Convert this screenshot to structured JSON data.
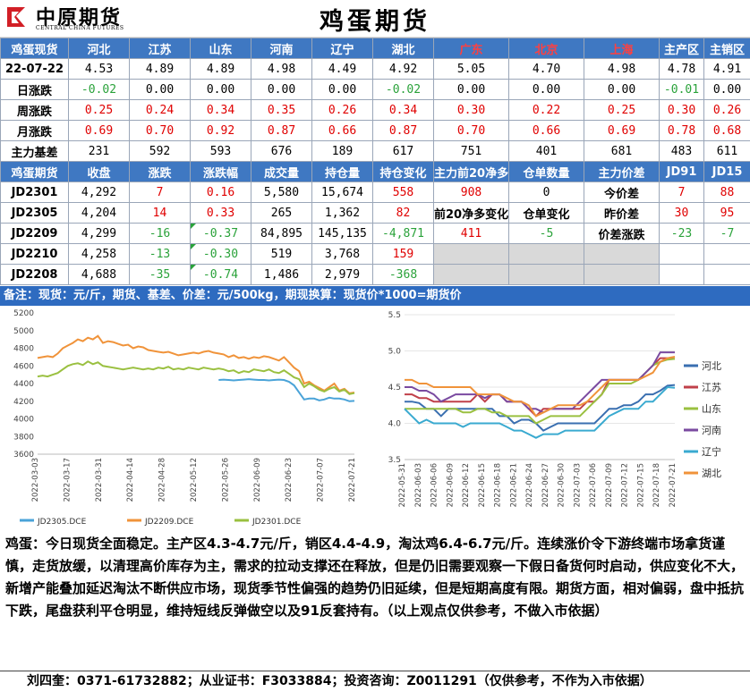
{
  "header": {
    "logo_cn": "中原期货",
    "logo_en": "CENTRAL CHINA FUTURES",
    "title": "鸡蛋期货"
  },
  "spot": {
    "headers": [
      "鸡蛋现货",
      "河北",
      "江苏",
      "山东",
      "河南",
      "辽宁",
      "湖北",
      "广东",
      "北京",
      "上海",
      "主产区",
      "主销区"
    ],
    "red_headers": [
      7,
      8,
      9
    ],
    "rows": [
      {
        "label": "22-07-22",
        "values": [
          "4.53",
          "4.89",
          "4.89",
          "4.98",
          "4.49",
          "4.92",
          "5.05",
          "4.70",
          "4.98",
          "4.78",
          "4.91"
        ],
        "colors": [
          "",
          "",
          "",
          "",
          "",
          "",
          "",
          "",
          "",
          "",
          ""
        ]
      },
      {
        "label": "日涨跌",
        "values": [
          "-0.02",
          "0.00",
          "0.00",
          "0.00",
          "0.00",
          "-0.02",
          "0.00",
          "0.00",
          "0.00",
          "-0.01",
          "0.00"
        ],
        "colors": [
          "green",
          "",
          "",
          "",
          "",
          "green",
          "",
          "",
          "",
          "green",
          ""
        ]
      },
      {
        "label": "周涨跌",
        "values": [
          "0.25",
          "0.24",
          "0.34",
          "0.35",
          "0.26",
          "0.34",
          "0.30",
          "0.22",
          "0.25",
          "0.30",
          "0.26"
        ],
        "colors": [
          "red",
          "red",
          "red",
          "red",
          "red",
          "red",
          "red",
          "red",
          "red",
          "red",
          "red"
        ]
      },
      {
        "label": "月涨跌",
        "values": [
          "0.69",
          "0.70",
          "0.92",
          "0.87",
          "0.66",
          "0.87",
          "0.70",
          "0.66",
          "0.69",
          "0.78",
          "0.68"
        ],
        "colors": [
          "red",
          "red",
          "red",
          "red",
          "red",
          "red",
          "red",
          "red",
          "red",
          "red",
          "red"
        ]
      },
      {
        "label": "主力基差",
        "values": [
          "231",
          "592",
          "593",
          "676",
          "189",
          "617",
          "751",
          "401",
          "681",
          "483",
          "611"
        ],
        "colors": [
          "",
          "",
          "",
          "",
          "",
          "",
          "",
          "",
          "",
          "",
          ""
        ]
      }
    ]
  },
  "futures": {
    "headers": [
      "鸡蛋期货",
      "收盘",
      "涨跌",
      "涨跌幅",
      "成交量",
      "持仓量",
      "持仓变化",
      "主力前20净多",
      "仓单数量",
      "主力价差",
      "JD91",
      "JD15"
    ],
    "rows": [
      {
        "contract": "JD2301",
        "close": "4,292",
        "chg": "7",
        "pct": "0.16",
        "vol": "5,580",
        "oi": "15,674",
        "oichg": "558",
        "c": [
          "red",
          "red",
          "",
          "",
          "red"
        ]
      },
      {
        "contract": "JD2305",
        "close": "4,204",
        "chg": "14",
        "pct": "0.33",
        "vol": "265",
        "oi": "1,362",
        "oichg": "82",
        "c": [
          "red",
          "red",
          "",
          "",
          "red"
        ]
      },
      {
        "contract": "JD2209",
        "close": "4,299",
        "chg": "-16",
        "pct": "-0.37",
        "vol": "84,895",
        "oi": "145,135",
        "oichg": "-4,871",
        "c": [
          "green",
          "green",
          "",
          "",
          "green"
        ]
      },
      {
        "contract": "JD2210",
        "close": "4,258",
        "chg": "-13",
        "pct": "-0.30",
        "vol": "519",
        "oi": "3,768",
        "oichg": "159",
        "c": [
          "green",
          "green",
          "",
          "",
          "red"
        ]
      },
      {
        "contract": "JD2208",
        "close": "4,688",
        "chg": "-35",
        "pct": "-0.74",
        "vol": "1,486",
        "oi": "2,979",
        "oichg": "-368",
        "c": [
          "green",
          "green",
          "",
          "",
          "green"
        ]
      }
    ],
    "net_long": "908",
    "warrants": "0",
    "net_long_chg_label": "前20净多变化",
    "warrant_chg_label": "仓单变化",
    "net_long_chg": "411",
    "warrant_chg": "-5",
    "spread_rows": [
      {
        "label": "今价差",
        "jd91": "7",
        "jd15": "88",
        "c1": "red",
        "c2": "red"
      },
      {
        "label": "昨价差",
        "jd91": "30",
        "jd15": "95",
        "c1": "red",
        "c2": "red"
      },
      {
        "label": "价差涨跌",
        "jd91": "-23",
        "jd15": "-7",
        "c1": "green",
        "c2": "green"
      }
    ]
  },
  "note": "备注：现货：元/斤，期货、基差、价差：元/500kg，期现换算：现货价*1000=期货价",
  "colors": {
    "blue_header": "#3f78c2",
    "red": "#e00000",
    "green": "#2aa23a"
  },
  "chart_data": [
    {
      "type": "line",
      "title": "",
      "xlabel": "",
      "ylabel": "",
      "ylim": [
        3600,
        5200
      ],
      "yticks": [
        "3600",
        "3800",
        "4000",
        "4200",
        "4400",
        "4600",
        "4800",
        "5000",
        "5200"
      ],
      "x_ticks": [
        "2022-03-03",
        "2022-03-17",
        "2022-03-31",
        "2022-04-14",
        "2022-04-28",
        "2022-05-12",
        "2022-05-26",
        "2022-06-09",
        "2022-06-23",
        "2022-07-07",
        "2022-07-21"
      ],
      "legend_position": "bottom",
      "series": [
        {
          "name": "JD2305.DCE",
          "color": "#4aa3d8",
          "values": [
            null,
            null,
            null,
            null,
            null,
            null,
            null,
            null,
            null,
            null,
            null,
            null,
            null,
            null,
            null,
            null,
            null,
            null,
            null,
            null,
            null,
            null,
            null,
            null,
            null,
            null,
            null,
            null,
            null,
            null,
            null,
            null,
            null,
            null,
            null,
            null,
            4440,
            4445,
            4440,
            4435,
            4440,
            4445,
            4450,
            4445,
            4440,
            4440,
            4435,
            4440,
            4445,
            4440,
            4420,
            4380,
            4300,
            4220,
            4230,
            4230,
            4210,
            4220,
            4240,
            4230,
            4230,
            4220,
            4200,
            4204
          ]
        },
        {
          "name": "JD2209.DCE",
          "color": "#f0933a",
          "values": [
            4690,
            4700,
            4710,
            4700,
            4740,
            4800,
            4830,
            4860,
            4900,
            4880,
            4920,
            4900,
            4940,
            4860,
            4880,
            4870,
            4850,
            4830,
            4840,
            4800,
            4820,
            4810,
            4780,
            4770,
            4760,
            4750,
            4760,
            4740,
            4720,
            4730,
            4740,
            4750,
            4740,
            4760,
            4770,
            4750,
            4740,
            4730,
            4700,
            4720,
            4690,
            4700,
            4680,
            4700,
            4690,
            4710,
            4700,
            4680,
            4660,
            4700,
            4640,
            4580,
            4540,
            4400,
            4420,
            4380,
            4350,
            4320,
            4360,
            4400,
            4320,
            4340,
            4290,
            4299
          ]
        },
        {
          "name": "JD2301.DCE",
          "color": "#9ac040",
          "values": [
            4480,
            4490,
            4480,
            4500,
            4520,
            4560,
            4600,
            4620,
            4630,
            4610,
            4650,
            4620,
            4640,
            4600,
            4590,
            4580,
            4570,
            4560,
            4570,
            4580,
            4570,
            4560,
            4570,
            4560,
            4580,
            4570,
            4590,
            4560,
            4570,
            4560,
            4580,
            4570,
            4560,
            4580,
            4570,
            4560,
            4570,
            4560,
            4540,
            4550,
            4520,
            4540,
            4530,
            4560,
            4550,
            4540,
            4560,
            4530,
            4520,
            4550,
            4510,
            4470,
            4450,
            4360,
            4400,
            4370,
            4330,
            4310,
            4340,
            4360,
            4310,
            4330,
            4280,
            4292
          ]
        }
      ]
    },
    {
      "type": "line",
      "title": "",
      "xlabel": "",
      "ylabel": "",
      "ylim": [
        3.5,
        5.5
      ],
      "yticks": [
        "3.5",
        "4.0",
        "4.5",
        "5.0",
        "5.5"
      ],
      "x_ticks": [
        "2022-05-31",
        "2022-06-03",
        "2022-06-06",
        "2022-06-09",
        "2022-06-12",
        "2022-06-15",
        "2022-06-18",
        "2022-06-21",
        "2022-06-24",
        "2022-06-27",
        "2022-06-30",
        "2022-07-03",
        "2022-07-06",
        "2022-07-09",
        "2022-07-12",
        "2022-07-15",
        "2022-07-18",
        "2022-07-21"
      ],
      "legend_position": "right",
      "series": [
        {
          "name": "河北",
          "color": "#3a6fb0",
          "values": [
            4.3,
            4.3,
            4.28,
            4.2,
            4.2,
            4.1,
            4.2,
            4.2,
            4.2,
            4.2,
            4.2,
            4.2,
            4.2,
            4.1,
            4.1,
            4.0,
            4.05,
            4.05,
            4.0,
            3.9,
            3.95,
            4.0,
            4.0,
            4.0,
            4.0,
            4.0,
            4.0,
            4.1,
            4.2,
            4.2,
            4.25,
            4.25,
            4.3,
            4.4,
            4.4,
            4.45,
            4.52,
            4.53
          ]
        },
        {
          "name": "江苏",
          "color": "#c0404a",
          "values": [
            4.4,
            4.4,
            4.35,
            4.35,
            4.3,
            4.3,
            4.3,
            4.3,
            4.3,
            4.3,
            4.4,
            4.3,
            4.4,
            4.4,
            4.3,
            4.3,
            4.3,
            4.2,
            4.1,
            4.2,
            4.2,
            4.2,
            4.2,
            4.2,
            4.2,
            4.3,
            4.3,
            4.4,
            4.6,
            4.6,
            4.6,
            4.6,
            4.6,
            4.7,
            4.8,
            4.9,
            4.9,
            4.89
          ]
        },
        {
          "name": "山东",
          "color": "#9ac040",
          "values": [
            4.2,
            4.2,
            4.2,
            4.2,
            4.2,
            4.2,
            4.2,
            4.2,
            4.15,
            4.15,
            4.2,
            4.2,
            4.15,
            4.15,
            4.1,
            4.1,
            4.1,
            4.1,
            4.0,
            4.05,
            4.1,
            4.1,
            4.1,
            4.1,
            4.1,
            4.2,
            4.3,
            4.4,
            4.55,
            4.55,
            4.55,
            4.55,
            4.6,
            4.7,
            4.8,
            4.85,
            4.88,
            4.89
          ]
        },
        {
          "name": "河南",
          "color": "#7a4aa0",
          "values": [
            4.5,
            4.5,
            4.45,
            4.45,
            4.4,
            4.3,
            4.35,
            4.4,
            4.4,
            4.4,
            4.4,
            4.35,
            4.4,
            4.4,
            4.3,
            4.3,
            4.3,
            4.2,
            4.2,
            4.15,
            4.2,
            4.2,
            4.2,
            4.2,
            4.3,
            4.4,
            4.5,
            4.6,
            4.6,
            4.6,
            4.6,
            4.6,
            4.6,
            4.7,
            4.8,
            4.98,
            4.98,
            4.98
          ]
        },
        {
          "name": "辽宁",
          "color": "#3aaad0",
          "values": [
            4.2,
            4.1,
            4.0,
            4.05,
            4.0,
            4.0,
            4.0,
            4.0,
            3.95,
            4.0,
            4.0,
            4.0,
            4.0,
            4.0,
            3.95,
            3.9,
            3.9,
            3.85,
            3.8,
            3.85,
            3.85,
            3.85,
            3.9,
            3.9,
            3.9,
            3.9,
            3.9,
            4.0,
            4.1,
            4.15,
            4.2,
            4.2,
            4.2,
            4.3,
            4.3,
            4.4,
            4.5,
            4.49
          ]
        },
        {
          "name": "湖北",
          "color": "#f0933a",
          "values": [
            4.6,
            4.6,
            4.55,
            4.55,
            4.5,
            4.5,
            4.5,
            4.5,
            4.5,
            4.5,
            4.4,
            4.4,
            4.4,
            4.4,
            4.35,
            4.3,
            4.3,
            4.25,
            4.1,
            4.15,
            4.2,
            4.25,
            4.25,
            4.25,
            4.25,
            4.3,
            4.4,
            4.5,
            4.6,
            4.6,
            4.6,
            4.6,
            4.6,
            4.65,
            4.7,
            4.85,
            4.9,
            4.92
          ]
        }
      ]
    }
  ],
  "commentary": "鸡蛋：今日现货全面稳定。主产区4.3-4.7元/斤，销区4.4-4.9，淘汰鸡6.4-6.7元/斤。连续涨价令下游终端市场拿货谨慎，走货放缓，以清理高价库存为主，需求的拉动支撑还在释放，但是仍旧需要观察一下假日备货何时启动，供应变化不大，新增产能叠加延迟淘汰不断供应市场，现货季节性偏强的趋势仍旧延续，但是短期高度有限。期货方面，相对偏弱，盘中抵抗下跌，尾盘获利平仓明显，维持短线反弹做空以及91反套持有。（以上观点仅供参考，不做入市依据）",
  "footer": "刘四奎：0371-61732882；从业证书：F3033884；投资咨询：Z0011291（仅供参考，不作为入市依据）"
}
